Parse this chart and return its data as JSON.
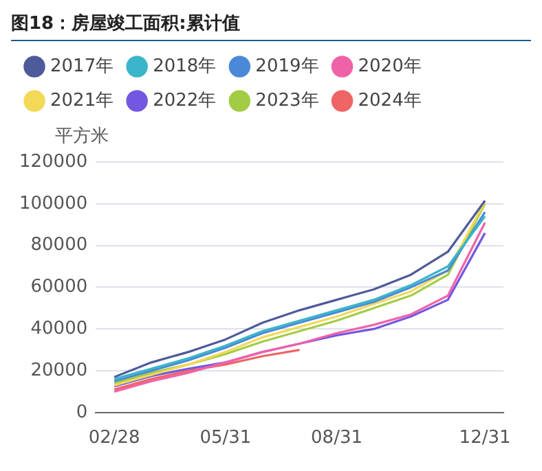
{
  "chart_data": {
    "type": "line",
    "title": "图18：房屋竣工面积:累计值",
    "ylabel": "平方米",
    "categories": [
      "02/28",
      null,
      null,
      "05/31",
      null,
      null,
      "08/31",
      null,
      null,
      null,
      "12/31"
    ],
    "series": [
      {
        "name": "2017年",
        "color": "#4e5a9a",
        "values": [
          17000,
          24000,
          29000,
          35000,
          43000,
          49000,
          54000,
          59000,
          66000,
          77000,
          101500
        ]
      },
      {
        "name": "2018年",
        "color": "#3bb5c9",
        "values": [
          16000,
          21000,
          26000,
          32000,
          39000,
          44000,
          49000,
          54000,
          61000,
          70000,
          94000
        ]
      },
      {
        "name": "2019年",
        "color": "#4a89d8",
        "values": [
          15000,
          20000,
          25000,
          31000,
          38000,
          43000,
          48000,
          53000,
          60000,
          68000,
          96000
        ]
      },
      {
        "name": "2020年",
        "color": "#f062a8",
        "values": [
          10000,
          15000,
          19000,
          24000,
          29000,
          33000,
          38000,
          42000,
          47000,
          56000,
          91000
        ]
      },
      {
        "name": "2021年",
        "color": "#f2d957",
        "values": [
          13000,
          18000,
          23000,
          29000,
          36000,
          41000,
          46000,
          52000,
          58000,
          68000,
          101000
        ]
      },
      {
        "name": "2022年",
        "color": "#7357e0",
        "values": [
          12500,
          17500,
          21000,
          24000,
          29000,
          33000,
          37000,
          40000,
          46000,
          54000,
          86000
        ]
      },
      {
        "name": "2023年",
        "color": "#a3cc45",
        "values": [
          14000,
          19000,
          23000,
          28000,
          34000,
          39000,
          44000,
          50000,
          56000,
          66000,
          100000
        ]
      },
      {
        "name": "2024年",
        "color": "#ef6464",
        "values": [
          11000,
          16000,
          20000,
          23000,
          27000,
          30000,
          null,
          null,
          null,
          null,
          null
        ]
      }
    ],
    "ylim": [
      0,
      120000
    ],
    "yticks": [
      0,
      20000,
      40000,
      60000,
      80000,
      100000,
      120000
    ],
    "grid": "y",
    "legend": "top",
    "marker": "none",
    "line_style": "solid"
  }
}
